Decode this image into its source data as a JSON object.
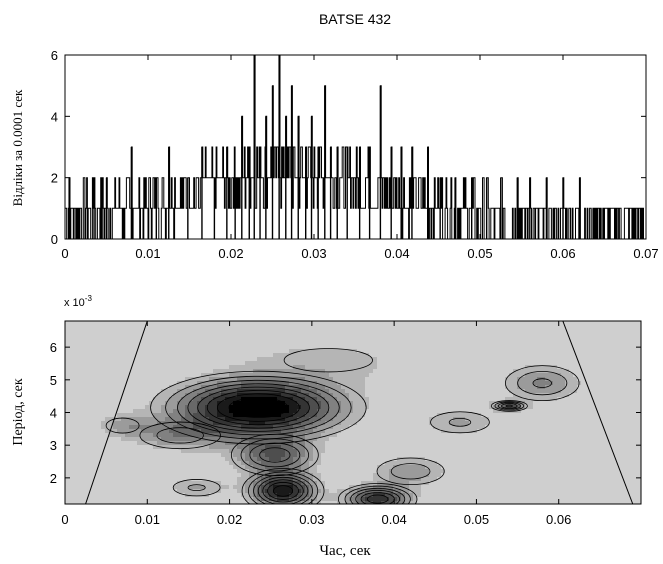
{
  "chart_data": [
    {
      "type": "bar",
      "title": "BATSE 432",
      "xlabel": "",
      "ylabel": "Відліки за 0.0001 сек",
      "xlim": [
        0,
        0.07
      ],
      "ylim": [
        0,
        6
      ],
      "xticks": [
        "0",
        "0.01",
        "0.02",
        "0.03",
        "0.04",
        "0.05",
        "0.06",
        "0.07"
      ],
      "yticks": [
        "0",
        "2",
        "4",
        "6"
      ],
      "bin_width": 0.0001,
      "peaks": [
        {
          "x": 0.0005,
          "y": 2
        },
        {
          "x": 0.0035,
          "y": 2
        },
        {
          "x": 0.005,
          "y": 2
        },
        {
          "x": 0.008,
          "y": 3
        },
        {
          "x": 0.011,
          "y": 2
        },
        {
          "x": 0.0125,
          "y": 3
        },
        {
          "x": 0.0148,
          "y": 2
        },
        {
          "x": 0.0165,
          "y": 3
        },
        {
          "x": 0.018,
          "y": 2
        },
        {
          "x": 0.0195,
          "y": 3
        },
        {
          "x": 0.0205,
          "y": 2
        },
        {
          "x": 0.0213,
          "y": 4
        },
        {
          "x": 0.0222,
          "y": 3
        },
        {
          "x": 0.0228,
          "y": 6
        },
        {
          "x": 0.0235,
          "y": 3
        },
        {
          "x": 0.0242,
          "y": 4
        },
        {
          "x": 0.025,
          "y": 5
        },
        {
          "x": 0.0258,
          "y": 6
        },
        {
          "x": 0.0266,
          "y": 4
        },
        {
          "x": 0.0273,
          "y": 5
        },
        {
          "x": 0.0281,
          "y": 4
        },
        {
          "x": 0.029,
          "y": 3
        },
        {
          "x": 0.0297,
          "y": 4
        },
        {
          "x": 0.0305,
          "y": 3
        },
        {
          "x": 0.0313,
          "y": 5
        },
        {
          "x": 0.032,
          "y": 3
        },
        {
          "x": 0.0328,
          "y": 3
        },
        {
          "x": 0.034,
          "y": 3
        },
        {
          "x": 0.0355,
          "y": 3
        },
        {
          "x": 0.0367,
          "y": 3
        },
        {
          "x": 0.038,
          "y": 5
        },
        {
          "x": 0.0393,
          "y": 3
        },
        {
          "x": 0.0405,
          "y": 3
        },
        {
          "x": 0.0418,
          "y": 3
        },
        {
          "x": 0.0437,
          "y": 3
        },
        {
          "x": 0.0452,
          "y": 2
        },
        {
          "x": 0.047,
          "y": 2
        },
        {
          "x": 0.049,
          "y": 2
        },
        {
          "x": 0.0508,
          "y": 2
        },
        {
          "x": 0.0525,
          "y": 2
        },
        {
          "x": 0.0545,
          "y": 2
        },
        {
          "x": 0.056,
          "y": 2
        },
        {
          "x": 0.058,
          "y": 2
        },
        {
          "x": 0.06,
          "y": 2
        },
        {
          "x": 0.062,
          "y": 2
        },
        {
          "x": 0.064,
          "y": 1
        },
        {
          "x": 0.0665,
          "y": 1
        }
      ]
    },
    {
      "type": "heatmap",
      "title": "",
      "xlabel": "Час, сек",
      "ylabel": "Період, сек",
      "xlim": [
        0,
        0.07
      ],
      "ylim": [
        1.2,
        6.8
      ],
      "xticks": [
        "0",
        "0.01",
        "0.02",
        "0.03",
        "0.04",
        "0.05",
        "0.06"
      ],
      "yticks": [
        "2",
        "3",
        "4",
        "5",
        "6"
      ],
      "yscale_label": "x 10",
      "yscale_exp": "-3",
      "blobs": [
        {
          "x": 0.0235,
          "y": 4.15,
          "sx": 0.01,
          "sy": 0.85,
          "amp": 1.0
        },
        {
          "x": 0.0265,
          "y": 1.6,
          "sx": 0.004,
          "sy": 0.55,
          "amp": 0.85
        },
        {
          "x": 0.038,
          "y": 1.35,
          "sx": 0.004,
          "sy": 0.4,
          "amp": 0.75
        },
        {
          "x": 0.0255,
          "y": 2.7,
          "sx": 0.005,
          "sy": 0.6,
          "amp": 0.55
        },
        {
          "x": 0.058,
          "y": 4.9,
          "sx": 0.005,
          "sy": 0.6,
          "amp": 0.4
        },
        {
          "x": 0.014,
          "y": 3.3,
          "sx": 0.006,
          "sy": 0.5,
          "amp": 0.35
        },
        {
          "x": 0.042,
          "y": 2.2,
          "sx": 0.005,
          "sy": 0.5,
          "amp": 0.35
        },
        {
          "x": 0.048,
          "y": 3.7,
          "sx": 0.005,
          "sy": 0.45,
          "amp": 0.3
        },
        {
          "x": 0.007,
          "y": 3.6,
          "sx": 0.0035,
          "sy": 0.4,
          "amp": 0.25
        },
        {
          "x": 0.032,
          "y": 5.6,
          "sx": 0.012,
          "sy": 0.8,
          "amp": 0.22
        },
        {
          "x": 0.016,
          "y": 1.7,
          "sx": 0.004,
          "sy": 0.35,
          "amp": 0.3
        },
        {
          "x": 0.054,
          "y": 4.2,
          "sx": 0.002,
          "sy": 0.15,
          "amp": 0.6
        }
      ],
      "cone_of_influence": [
        {
          "x": [
            0.0025,
            0.01
          ],
          "y": [
            1.2,
            6.8
          ]
        },
        {
          "x": [
            0.0605,
            0.069
          ],
          "y": [
            6.8,
            1.2
          ]
        }
      ],
      "levels": [
        0.18,
        0.28,
        0.38,
        0.48,
        0.58,
        0.68,
        0.78,
        0.88
      ],
      "colors": {
        "low": "#cfcfcf",
        "mid": "#9a9a9a",
        "high": "#000000"
      }
    }
  ]
}
